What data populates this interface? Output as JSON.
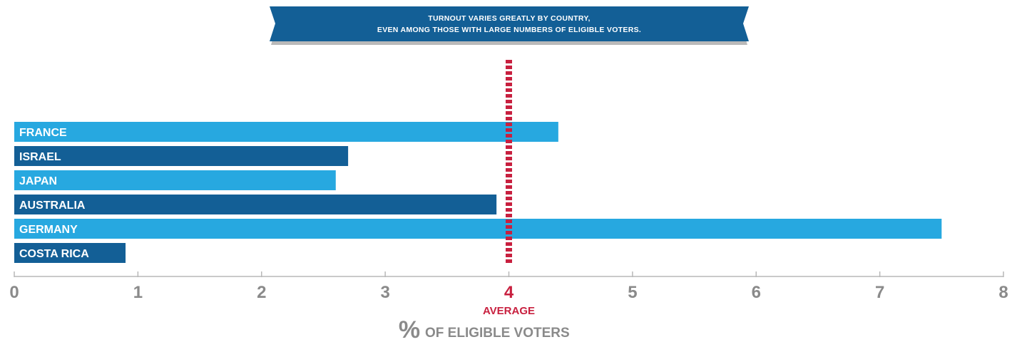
{
  "banner": {
    "line1": "TURNOUT VARIES GREATLY BY COUNTRY,",
    "line2": "EVEN AMONG THOSE WITH LARGE NUMBERS OF ELIGIBLE VOTERS."
  },
  "chart_data": {
    "type": "bar",
    "orientation": "horizontal",
    "categories": [
      "FRANCE",
      "ISRAEL",
      "JAPAN",
      "AUSTRALIA",
      "GERMANY",
      "COSTA RICA"
    ],
    "values": [
      4.4,
      2.7,
      2.6,
      3.9,
      7.5,
      0.9
    ],
    "xlim": [
      0,
      8
    ],
    "xticks": [
      "0",
      "1",
      "2",
      "3",
      "4",
      "5",
      "6",
      "7",
      "8"
    ],
    "average": 4,
    "average_label": "AVERAGE",
    "xlabel_symbol": "%",
    "xlabel": "OF ELIGIBLE VOTERS",
    "grid": false
  },
  "colors": {
    "bar_light": "#27a8e0",
    "bar_dark": "#135f96",
    "average": "#c8203f",
    "axis": "#b8b8b8",
    "tick_text": "#8a8a8a",
    "banner": "#135f96",
    "banner_shadow": "#b9b9b9"
  }
}
